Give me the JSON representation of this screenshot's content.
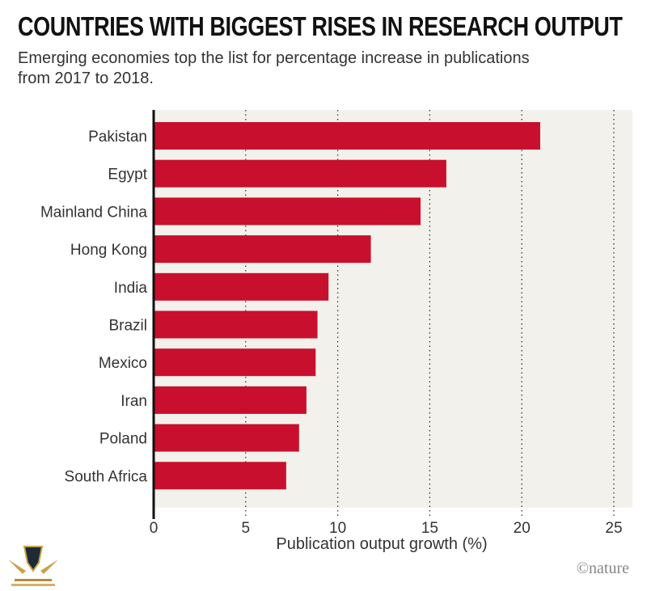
{
  "title": "COUNTRIES WITH BIGGEST RISES IN RESEARCH OUTPUT",
  "subtitle": "Emerging economies top the list for percentage increase in publications from 2017 to 2018.",
  "credit": "©nature",
  "colors": {
    "bar": "#c8102e",
    "plot_bg": "#f3f1eb"
  },
  "chart_data": {
    "type": "bar",
    "orientation": "horizontal",
    "categories": [
      "Pakistan",
      "Egypt",
      "Mainland China",
      "Hong Kong",
      "India",
      "Brazil",
      "Mexico",
      "Iran",
      "Poland",
      "South Africa"
    ],
    "values": [
      21.0,
      15.9,
      14.5,
      11.8,
      9.5,
      8.9,
      8.8,
      8.3,
      7.9,
      7.2
    ],
    "xlabel": "Publication output growth (%)",
    "xlim": [
      0,
      25
    ],
    "xticks": [
      0,
      5,
      10,
      15,
      20,
      25
    ],
    "grid": "vertical dotted"
  }
}
